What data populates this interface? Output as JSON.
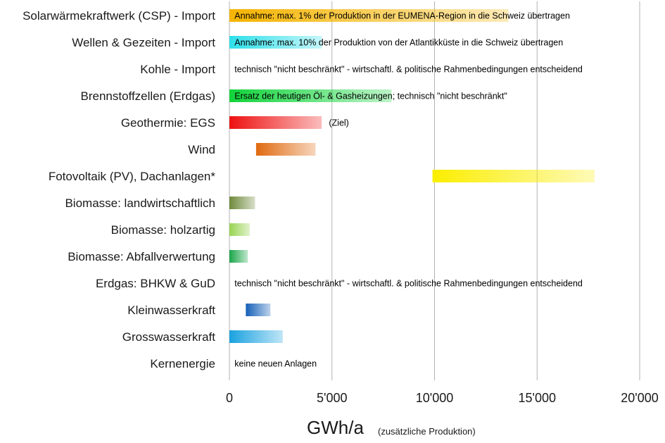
{
  "chart_data": {
    "type": "bar",
    "orientation": "horizontal",
    "bar_style": "floating-range-gradient",
    "grid": true,
    "xlim": [
      0,
      20000
    ],
    "xticks": [
      0,
      5000,
      10000,
      15000,
      20000
    ],
    "xtick_labels": [
      "0",
      "5'000",
      "10'000",
      "15'000",
      "20'000"
    ],
    "xlabel": "GWh/a",
    "xlabel_note": "(zusätzliche Produktion)",
    "categories": [
      {
        "label": "Solarwärmekraftwerk (CSP) - Import",
        "start": 0,
        "end": 13600,
        "color": "#f5b400",
        "note": "Annahme: max. 1% der Produktion in der EUMENA-Region in die Schweiz übertragen",
        "note_at": 250
      },
      {
        "label": "Wellen & Gezeiten - Import",
        "start": 0,
        "end": 4500,
        "color": "#2ee0ea",
        "note": "Annahme: max. 10% der Produktion von der Atlantikküste in die Schweiz übertragen",
        "note_at": 250
      },
      {
        "label": "Kohle - Import",
        "start": null,
        "end": null,
        "color": "",
        "note": "technisch \"nicht beschränkt\" - wirtschaftl. & politische  Rahmenbedingungen entscheidend",
        "note_at": 250
      },
      {
        "label": "Brennstoffzellen (Erdgas)",
        "start": 0,
        "end": 7900,
        "color": "#11d43a",
        "note": "Ersatz der heutigen Öl- & Gasheizungen; technisch \"nicht beschränkt\"",
        "note_at": 250
      },
      {
        "label": "Geothermie: EGS",
        "start": 0,
        "end": 4500,
        "color": "#ee1111",
        "note": "(Ziel)",
        "note_at": 4850
      },
      {
        "label": "Wind",
        "start": 1300,
        "end": 4200,
        "color": "#e06a10",
        "note": "",
        "note_at": 0
      },
      {
        "label": "Fotovoltaik (PV), Dachanlagen*",
        "start": 9900,
        "end": 17800,
        "color": "#fbee00",
        "note": "",
        "note_at": 0
      },
      {
        "label": "Biomasse: landwirtschaftlich",
        "start": 0,
        "end": 1250,
        "color": "#6f8a3c",
        "note": "",
        "note_at": 0
      },
      {
        "label": "Biomasse: holzartig",
        "start": 0,
        "end": 1000,
        "color": "#98d350",
        "note": "",
        "note_at": 0
      },
      {
        "label": "Biomasse: Abfallverwertung",
        "start": 0,
        "end": 900,
        "color": "#1aa64a",
        "note": "",
        "note_at": 0
      },
      {
        "label": "Erdgas: BHKW & GuD",
        "start": null,
        "end": null,
        "color": "",
        "note": "technisch \"nicht beschränkt\" - wirtschaftl. & politische  Rahmenbedingungen entscheidend",
        "note_at": 250
      },
      {
        "label": "Kleinwasserkraft",
        "start": 800,
        "end": 2000,
        "color": "#1560b8",
        "note": "",
        "note_at": 0
      },
      {
        "label": "Grosswasserkraft",
        "start": 0,
        "end": 2600,
        "color": "#1aa2e0",
        "note": "",
        "note_at": 0
      },
      {
        "label": "Kernenergie",
        "start": null,
        "end": null,
        "color": "",
        "note": "keine neuen Anlagen",
        "note_at": 250
      }
    ]
  }
}
